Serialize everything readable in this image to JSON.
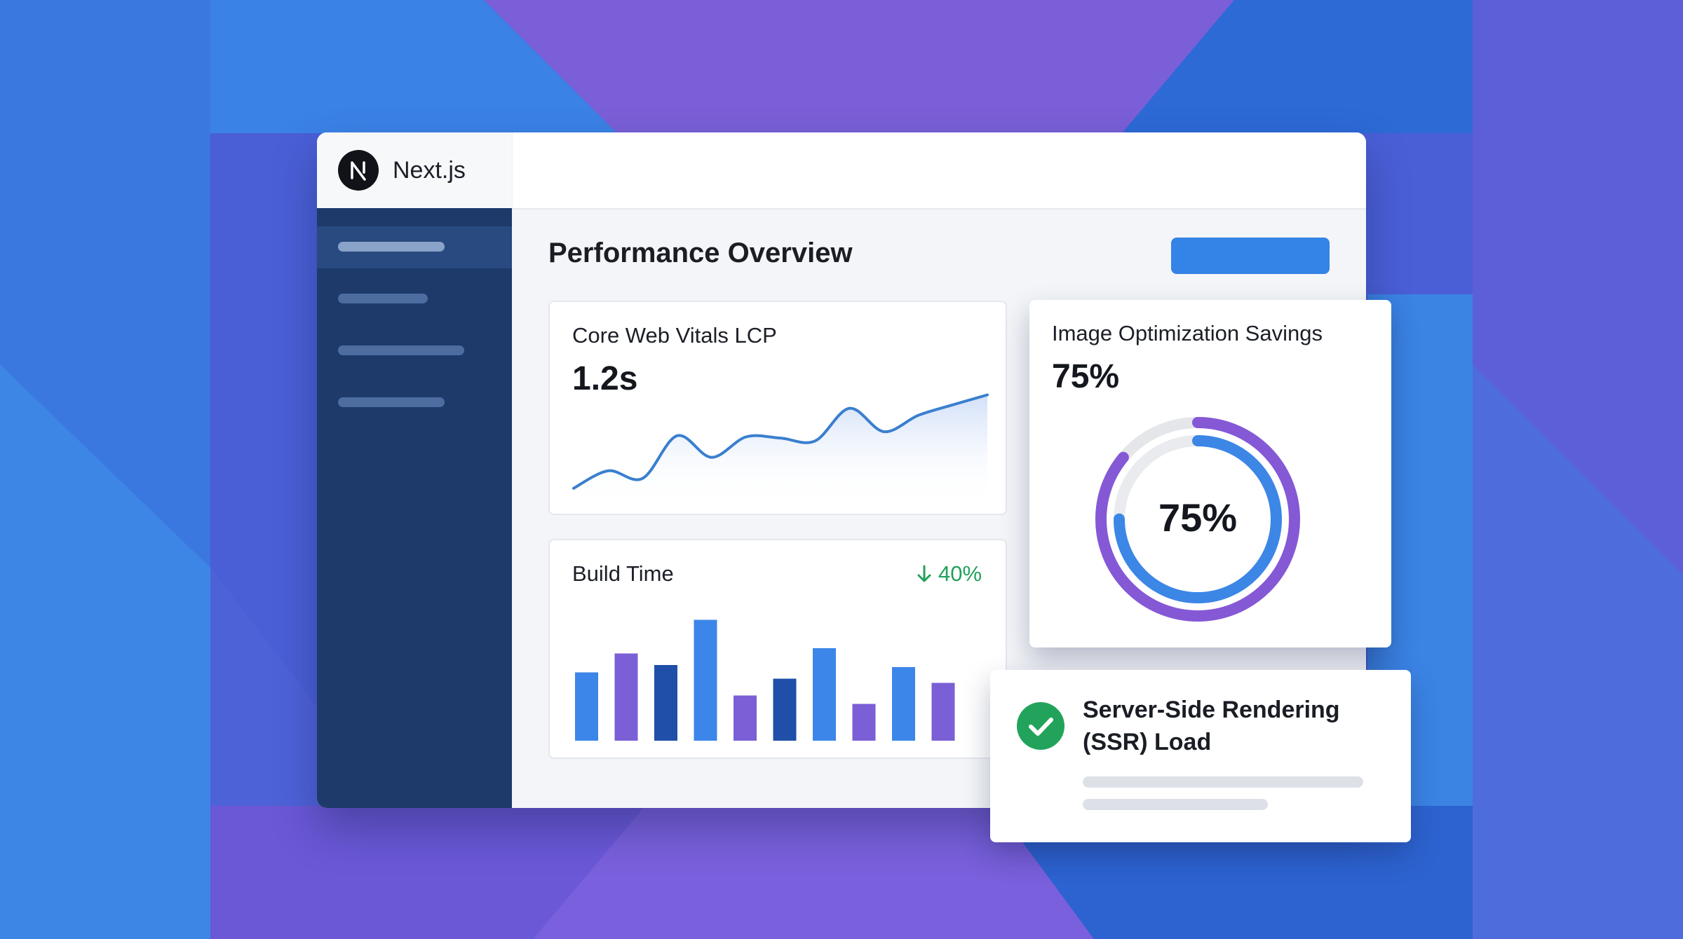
{
  "colors": {
    "accent_blue": "#3483e6",
    "accent_purple": "#7c5fd6",
    "dark_blue": "#1d4e9e",
    "sidebar": "#1d3a6b",
    "success": "#23a15a"
  },
  "app": {
    "name": "Next.js",
    "logo_icon": "nextjs-logo-icon"
  },
  "sidebar": {
    "items": [
      {
        "active": true
      },
      {
        "active": false
      },
      {
        "active": false
      },
      {
        "active": false
      }
    ]
  },
  "main": {
    "title": "Performance Overview"
  },
  "lcp_card": {
    "title": "Core Web Vitals LCP",
    "value": "1.2s"
  },
  "build_card": {
    "title": "Build Time",
    "delta_icon": "arrow-down-icon",
    "delta": "40%"
  },
  "image_card": {
    "title": "Image Optimization Savings",
    "value": "75%",
    "donut_label": "75%",
    "donut_fraction": 0.75
  },
  "ssr_card": {
    "icon": "check-circle-icon",
    "title": "Server-Side Rendering (SSR) Load"
  },
  "chart_data": [
    {
      "type": "area",
      "title": "Core Web Vitals LCP",
      "x": [
        0,
        1,
        2,
        3,
        4,
        5,
        6,
        7,
        8,
        9,
        10,
        11,
        12
      ],
      "y": [
        0.5,
        3.5,
        2.2,
        9.5,
        5.8,
        9.3,
        9.1,
        8.6,
        14.2,
        10.2,
        13.0,
        14.8,
        16.5
      ],
      "ylim": [
        0,
        18
      ],
      "grid": false,
      "xlabel": "",
      "ylabel": ""
    },
    {
      "type": "bar",
      "title": "Build Time",
      "values": [
        6.5,
        8.3,
        7.2,
        11.5,
        4.3,
        5.9,
        8.8,
        3.5,
        7.0,
        5.5
      ],
      "colors": [
        "#3b86e8",
        "#7b5fd6",
        "#1f4fa8",
        "#3b86e8",
        "#7b5fd6",
        "#1f4fa8",
        "#3b86e8",
        "#7b5fd6",
        "#3b86e8",
        "#7b5fd6"
      ],
      "ylim": [
        0,
        12
      ],
      "grid": false
    }
  ]
}
